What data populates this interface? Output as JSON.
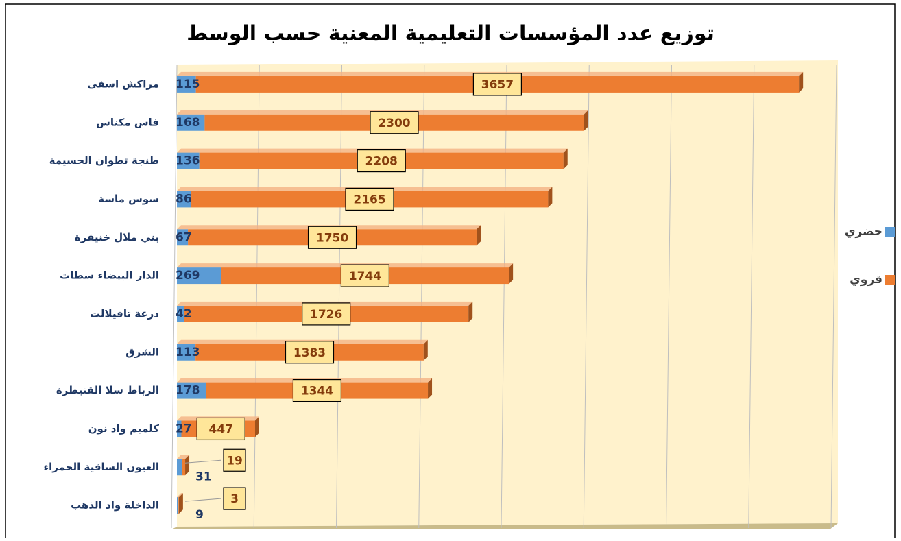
{
  "chart_data": {
    "type": "stacked-bar-horizontal",
    "title": "توزيع عدد المؤسسات التعليمية المعنية حسب الوسط",
    "categories": [
      "مراكش اسفى",
      "فاس مكناس",
      "طنجة تطوان الحسيمة",
      "سوس ماسة",
      "بني ملال خنيفرة",
      "الدار البيضاء سطات",
      "درعة تافيلالت",
      "الشرق",
      "الرباط سلا القنيطرة",
      "كلميم واد نون",
      "العيون الساقية الحمراء",
      "الداخلة واد الذهب"
    ],
    "series": [
      {
        "name": "حضري",
        "color": "#5b9bd5",
        "values": [
          115,
          168,
          136,
          86,
          67,
          269,
          42,
          113,
          178,
          27,
          31,
          9
        ]
      },
      {
        "name": "قروي",
        "color": "#ed7d31",
        "values": [
          3657,
          2300,
          2208,
          2165,
          1750,
          1744,
          1726,
          1383,
          1344,
          447,
          19,
          3
        ]
      }
    ],
    "xlim": [
      0,
      4000
    ],
    "xticks": [
      0,
      500,
      1000,
      1500,
      2000,
      2500,
      3000,
      3500,
      4000
    ],
    "grid": true,
    "legend": "right"
  }
}
